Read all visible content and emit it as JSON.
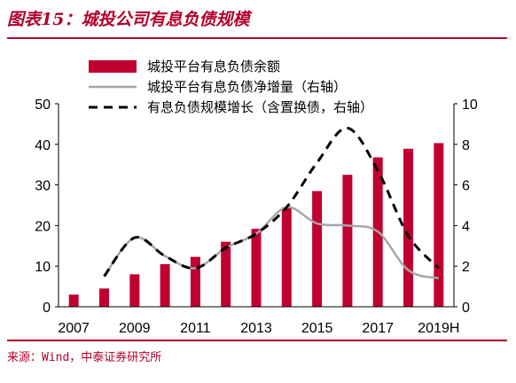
{
  "header": {
    "title": "图表15：城投公司有息负债规模"
  },
  "footer": {
    "source": "来源：Wind，中泰证券研究所"
  },
  "chart_data": {
    "type": "bar",
    "x": [
      "2007",
      "2008",
      "2009",
      "2010",
      "2011",
      "2012",
      "2013",
      "2014",
      "2015",
      "2016",
      "2017",
      "2018",
      "2019H"
    ],
    "x_tick_labels": [
      "2007",
      "2009",
      "2011",
      "2013",
      "2015",
      "2017",
      "2019H"
    ],
    "series": [
      {
        "name": "城投平台有息负债余额",
        "type": "bar",
        "axis": "left",
        "color": "#c0002f",
        "values": [
          3,
          4.5,
          8,
          10.5,
          12.3,
          16,
          19.2,
          24.5,
          28.5,
          32.5,
          36.8,
          38.9,
          40.3
        ]
      },
      {
        "name": "城投平台有息负债净增量（右轴）",
        "type": "line",
        "axis": "right",
        "color": "#a6a6a6",
        "style": "solid",
        "values": [
          null,
          1.5,
          3.4,
          2.5,
          1.9,
          2.9,
          3.6,
          4.9,
          4.1,
          4.0,
          3.7,
          1.8,
          1.4
        ]
      },
      {
        "name": "有息负债规模增长（含置换债，右轴）",
        "type": "line",
        "axis": "right",
        "color": "#000000",
        "style": "dashed",
        "values": [
          null,
          1.5,
          3.4,
          2.5,
          1.9,
          2.9,
          3.6,
          4.9,
          7.1,
          8.8,
          6.7,
          3.5,
          1.9
        ]
      }
    ],
    "y_left": {
      "lim": [
        0,
        50
      ],
      "ticks": [
        0,
        10,
        20,
        30,
        40,
        50
      ]
    },
    "y_right": {
      "lim": [
        0,
        10
      ],
      "ticks": [
        0,
        2,
        4,
        6,
        8,
        10
      ]
    },
    "grid": false,
    "legend_position": "top-left"
  }
}
